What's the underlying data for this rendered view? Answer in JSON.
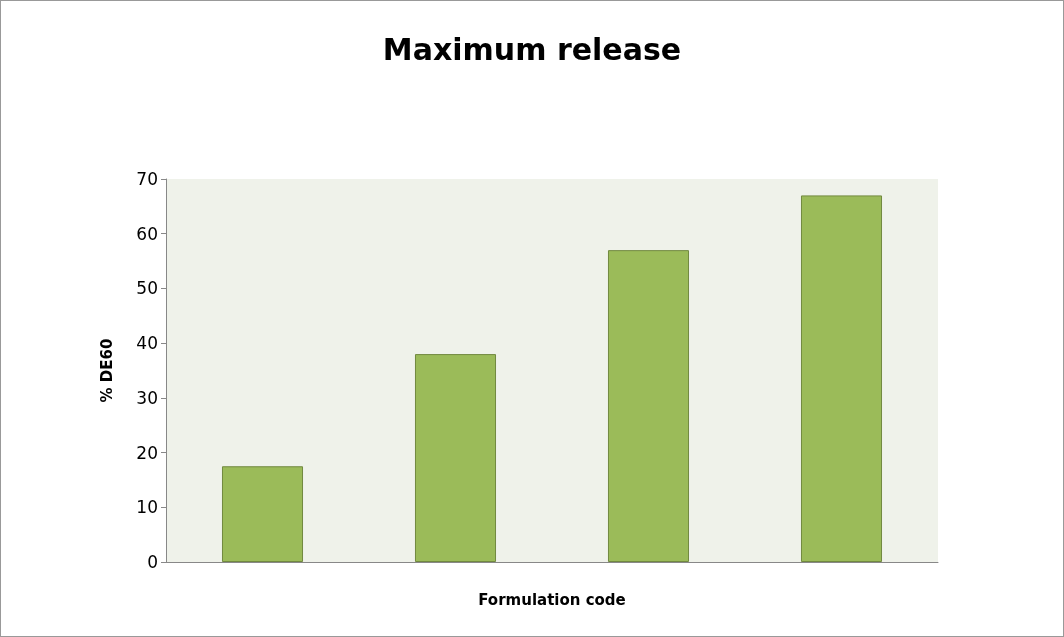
{
  "chart_data": {
    "type": "bar",
    "title": "Maximum release",
    "xlabel": "Formulation code",
    "ylabel": "% DE60",
    "categories": [
      null,
      null,
      null,
      null
    ],
    "series": [
      {
        "color": "#9bbb59",
        "values": [
          17.5,
          38,
          57,
          67
        ]
      }
    ],
    "ylim": [
      0,
      70
    ],
    "yticks": [
      0,
      10,
      20,
      30,
      40,
      50,
      60,
      70
    ],
    "grid": false
  }
}
